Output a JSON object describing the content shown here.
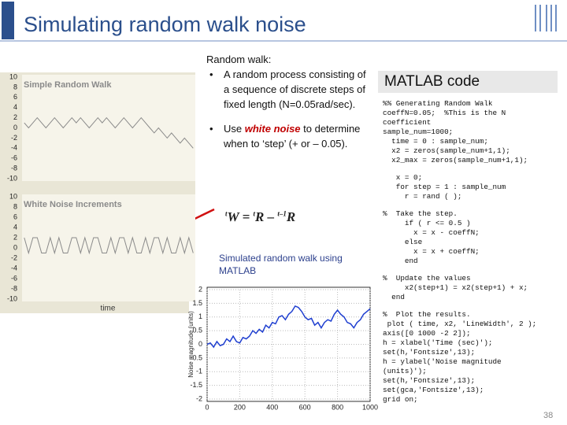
{
  "header": {
    "title": "Simulating random walk noise"
  },
  "bullets": {
    "intro": "Random walk:",
    "items": [
      "A random process consisting of a sequence of discrete steps of fixed length (N=0.05rad/sec).",
      {
        "before": "Use ",
        "highlight": "white noise",
        "after": " to determine when to ‘step’ (+ or – 0.05)."
      }
    ]
  },
  "formula": {
    "w_sup": "t",
    "w": "W = ",
    "r_sup": "t",
    "r": "R – ",
    "r2_sup": "t–1",
    "r2": "R"
  },
  "caption": "Simulated random walk using MATLAB",
  "code_title": "MATLAB code",
  "code_blocks": [
    [
      "%% Generating Random Walk",
      "coeffN=0.05;  %This is the N",
      "coefficient",
      "sample_num=1000;",
      "  time = 0 : sample_num;",
      "  x2 = zeros(sample_num+1,1);",
      "  x2_max = zeros(sample_num+1,1);"
    ],
    [
      "   x = 0;",
      "   for step = 1 : sample_num",
      "     r = rand ( );"
    ],
    [
      "%  Take the step.",
      "     if ( r <= 0.5 )",
      "       x = x - coeffN;",
      "     else",
      "       x = x + coeffN;",
      "     end"
    ],
    [
      "%  Update the values",
      "     x2(step+1) = x2(step+1) + x;",
      "  end"
    ],
    [
      "%  Plot the results.",
      " plot ( time, x2, 'LineWidth', 2 );",
      "axis([0 1000 -2 2]);",
      "h = xlabel('Time (sec)');",
      "set(h,'Fontsize',13);",
      "h = ylabel('Noise magnitude",
      "(units)');",
      "set(h,'Fontsize',13);",
      "set(gca,'Fontsize',13);",
      "grid on;"
    ]
  ],
  "page_number": "38",
  "left_xlabel": "time",
  "chart_data": [
    {
      "type": "line",
      "title": "Simple Random Walk",
      "color": "#8a8a8a",
      "values": [
        1,
        0,
        1,
        2,
        1,
        0,
        1,
        2,
        1,
        0,
        1,
        2,
        1,
        2,
        1,
        0,
        1,
        2,
        1,
        2,
        1,
        0,
        1,
        2,
        1,
        0,
        1,
        2,
        1,
        0,
        -1,
        0,
        -1,
        -2,
        -1,
        -2,
        -3,
        -2,
        -3,
        -4
      ],
      "ylim": [
        -10,
        10
      ],
      "yticks": [
        -10,
        -8,
        -6,
        -4,
        -2,
        0,
        2,
        4,
        6,
        8,
        10
      ]
    },
    {
      "type": "line",
      "title": "White Noise Increments",
      "color": "#8a8a8a",
      "values": [
        2,
        -1,
        2,
        2,
        -1,
        -1,
        2,
        -1,
        2,
        -1,
        -1,
        2,
        2,
        -1,
        2,
        -1,
        2,
        2,
        -1,
        -1,
        2,
        -1,
        2,
        2,
        -1,
        2,
        -1,
        -1,
        2,
        -1,
        2,
        2,
        -1,
        2,
        -1,
        -1,
        2,
        -1,
        2,
        -1
      ],
      "ylim": [
        -10,
        10
      ],
      "yticks": [
        -10,
        -8,
        -6,
        -4,
        -2,
        0,
        2,
        4,
        6,
        8,
        10
      ]
    },
    {
      "type": "line",
      "ylabel": "Noise magnitude (units)",
      "color": "#1f3fd0",
      "grid": true,
      "x": [
        0,
        20,
        40,
        60,
        80,
        100,
        120,
        140,
        160,
        180,
        200,
        220,
        240,
        260,
        280,
        300,
        320,
        340,
        360,
        380,
        400,
        420,
        440,
        460,
        480,
        500,
        520,
        540,
        560,
        580,
        600,
        620,
        640,
        660,
        680,
        700,
        720,
        740,
        760,
        780,
        800,
        820,
        840,
        860,
        880,
        900,
        920,
        940,
        960,
        980,
        1000
      ],
      "values": [
        0,
        0.05,
        -0.1,
        0.1,
        -0.05,
        0,
        0.2,
        0.1,
        0.3,
        0.1,
        0.05,
        0.25,
        0.2,
        0.3,
        0.5,
        0.4,
        0.55,
        0.45,
        0.7,
        0.6,
        0.8,
        0.75,
        1.0,
        1.05,
        0.9,
        1.1,
        1.2,
        1.4,
        1.35,
        1.2,
        1.0,
        0.9,
        0.95,
        0.7,
        0.8,
        0.6,
        0.8,
        0.9,
        0.85,
        1.1,
        1.25,
        1.1,
        1.0,
        0.8,
        0.75,
        0.6,
        0.8,
        0.9,
        1.1,
        1.2,
        1.3
      ],
      "xlim": [
        0,
        1000
      ],
      "xticks": [
        0,
        200,
        400,
        600,
        800,
        1000
      ],
      "ylim": [
        -2,
        2
      ],
      "yticks": [
        -2,
        -1.5,
        -1,
        -0.5,
        0,
        0.5,
        1,
        1.5,
        2
      ]
    }
  ]
}
